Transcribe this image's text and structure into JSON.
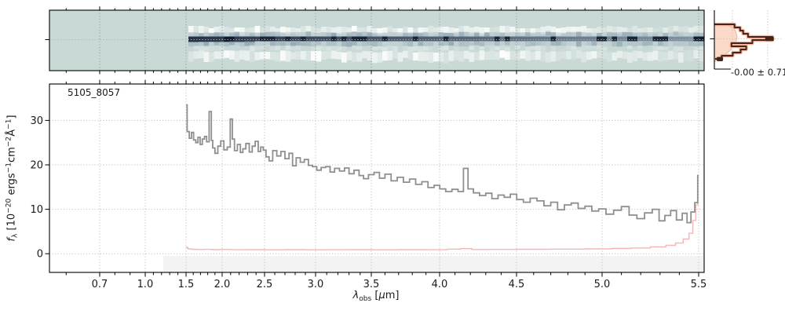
{
  "figure": {
    "id_label": "5105_8057",
    "residual_label": "-0.00 ± 0.71",
    "xlabel_segments": [
      [
        "λ",
        "it"
      ],
      [
        "obs",
        "sub"
      ],
      [
        " [",
        ""
      ],
      [
        "μ",
        "it"
      ],
      [
        "m]",
        ""
      ]
    ],
    "ylabel_segments": [
      [
        "f",
        "it"
      ],
      [
        "λ",
        "sub"
      ],
      [
        " [10",
        ""
      ],
      [
        "−20",
        "sup"
      ],
      [
        " ergs",
        ""
      ],
      [
        "−1",
        "sup"
      ],
      [
        "cm",
        ""
      ],
      [
        "−2",
        "sup"
      ],
      [
        "Å",
        ""
      ],
      [
        "−1",
        "sup"
      ],
      [
        "]",
        ""
      ]
    ]
  },
  "colors": {
    "background": "#ffffff",
    "spine": "#000000",
    "tick": "#000000",
    "text": "#1a1a1a",
    "grid_main": "#c0c0c0",
    "grid_2d": "#8e8f86",
    "grid_2d_h": "#b5b5ad",
    "teal_background": "#c9d9d6",
    "trace_dark": "#273349",
    "trace_light": "#8296a8",
    "trace_blob": "#131d2e",
    "flux_line": "#8f8f8f",
    "err_line": "#f5b6b9",
    "shade": "#f3f3f3",
    "hist_fill": "#f9d2c0",
    "hist_fill_edge": "#f0b196",
    "hist_halo": "#f5b59d",
    "hist_edge": "#46241a"
  },
  "chart_data": {
    "type": "line",
    "title": "",
    "source_id": "5105_8057",
    "grid": "dotted",
    "x_axis": {
      "label": "λ_obs [μm]",
      "scale": "nirspec-prism-pixel (nonlinear)",
      "range_um": [
        0.55,
        5.53
      ],
      "ticks": [
        0.7,
        1.0,
        1.5,
        2.0,
        2.5,
        3.0,
        3.5,
        4.0,
        4.5,
        5.0,
        5.5
      ],
      "minor_tick_step_um": 0.1,
      "anchors": [
        [
          0.55,
          0.0
        ],
        [
          0.7,
          0.0767
        ],
        [
          1.0,
          0.1463
        ],
        [
          1.5,
          0.2086
        ],
        [
          2.0,
          0.2638
        ],
        [
          2.5,
          0.3285
        ],
        [
          3.0,
          0.4065
        ],
        [
          3.5,
          0.4916
        ],
        [
          4.0,
          0.5959
        ],
        [
          4.5,
          0.7134
        ],
        [
          5.0,
          0.8441
        ],
        [
          5.5,
          0.9916
        ],
        [
          5.53,
          1.0
        ]
      ]
    },
    "y_axis": {
      "label": "f_λ [10^−20 ergs^−1 cm^−2 Å^−1]",
      "range": [
        -4.2,
        38.2
      ],
      "ticks": [
        0,
        10,
        20,
        30
      ]
    },
    "series": [
      {
        "name": "flux",
        "style": "step",
        "color_key": "flux_line",
        "width": 1.8,
        "points": [
          [
            1.5,
            33.5
          ],
          [
            1.53,
            27.5
          ],
          [
            1.56,
            26.0
          ],
          [
            1.59,
            27.3
          ],
          [
            1.62,
            25.6
          ],
          [
            1.65,
            25.0
          ],
          [
            1.68,
            26.2
          ],
          [
            1.71,
            24.6
          ],
          [
            1.74,
            25.8
          ],
          [
            1.77,
            26.4
          ],
          [
            1.8,
            25.2
          ],
          [
            1.84,
            32.0
          ],
          [
            1.86,
            25.5
          ],
          [
            1.88,
            23.8
          ],
          [
            1.92,
            22.6
          ],
          [
            1.96,
            24.2
          ],
          [
            2.0,
            25.4
          ],
          [
            2.04,
            23.4
          ],
          [
            2.08,
            24.0
          ],
          [
            2.11,
            30.3
          ],
          [
            2.13,
            25.8
          ],
          [
            2.16,
            23.2
          ],
          [
            2.2,
            24.6
          ],
          [
            2.23,
            22.8
          ],
          [
            2.26,
            23.6
          ],
          [
            2.3,
            24.8
          ],
          [
            2.34,
            22.9
          ],
          [
            2.37,
            24.2
          ],
          [
            2.41,
            25.3
          ],
          [
            2.44,
            23.0
          ],
          [
            2.47,
            24.0
          ],
          [
            2.5,
            23.3
          ],
          [
            2.53,
            21.8
          ],
          [
            2.56,
            20.9
          ],
          [
            2.6,
            23.2
          ],
          [
            2.64,
            22.0
          ],
          [
            2.68,
            23.0
          ],
          [
            2.72,
            21.4
          ],
          [
            2.76,
            22.6
          ],
          [
            2.79,
            19.8
          ],
          [
            2.83,
            21.6
          ],
          [
            2.87,
            20.6
          ],
          [
            2.91,
            21.2
          ],
          [
            2.95,
            19.9
          ],
          [
            2.99,
            19.6
          ],
          [
            3.03,
            18.8
          ],
          [
            3.07,
            19.4
          ],
          [
            3.11,
            19.6
          ],
          [
            3.15,
            18.4
          ],
          [
            3.19,
            19.2
          ],
          [
            3.24,
            18.6
          ],
          [
            3.28,
            19.3
          ],
          [
            3.32,
            18.0
          ],
          [
            3.37,
            18.8
          ],
          [
            3.41,
            17.6
          ],
          [
            3.45,
            16.9
          ],
          [
            3.5,
            17.8
          ],
          [
            3.54,
            18.3
          ],
          [
            3.58,
            17.0
          ],
          [
            3.62,
            17.9
          ],
          [
            3.67,
            16.4
          ],
          [
            3.71,
            17.2
          ],
          [
            3.76,
            16.1
          ],
          [
            3.8,
            16.8
          ],
          [
            3.85,
            15.6
          ],
          [
            3.89,
            16.2
          ],
          [
            3.94,
            14.9
          ],
          [
            3.98,
            15.4
          ],
          [
            4.02,
            14.6
          ],
          [
            4.06,
            14.0
          ],
          [
            4.1,
            14.5
          ],
          [
            4.14,
            14.0
          ],
          [
            4.17,
            19.2
          ],
          [
            4.2,
            14.6
          ],
          [
            4.24,
            13.7
          ],
          [
            4.28,
            13.1
          ],
          [
            4.32,
            13.6
          ],
          [
            4.36,
            12.4
          ],
          [
            4.4,
            13.2
          ],
          [
            4.44,
            12.7
          ],
          [
            4.48,
            13.4
          ],
          [
            4.52,
            12.2
          ],
          [
            4.56,
            11.6
          ],
          [
            4.6,
            12.5
          ],
          [
            4.64,
            11.9
          ],
          [
            4.68,
            10.8
          ],
          [
            4.72,
            11.6
          ],
          [
            4.76,
            9.9
          ],
          [
            4.8,
            11.0
          ],
          [
            4.84,
            11.4
          ],
          [
            4.88,
            10.2
          ],
          [
            4.92,
            10.7
          ],
          [
            4.96,
            9.6
          ],
          [
            5.0,
            10.1
          ],
          [
            5.04,
            8.9
          ],
          [
            5.08,
            9.8
          ],
          [
            5.12,
            10.6
          ],
          [
            5.16,
            8.7
          ],
          [
            5.2,
            7.9
          ],
          [
            5.24,
            9.2
          ],
          [
            5.28,
            10.0
          ],
          [
            5.31,
            7.4
          ],
          [
            5.34,
            8.6
          ],
          [
            5.37,
            9.7
          ],
          [
            5.4,
            7.6
          ],
          [
            5.43,
            9.1
          ],
          [
            5.45,
            7.0
          ],
          [
            5.47,
            9.4
          ],
          [
            5.49,
            11.5
          ],
          [
            5.5,
            17.6
          ]
        ]
      },
      {
        "name": "error",
        "style": "step",
        "color_key": "err_line",
        "width": 1.4,
        "points": [
          [
            1.5,
            1.45
          ],
          [
            1.55,
            1.1
          ],
          [
            1.6,
            1.0
          ],
          [
            1.7,
            0.95
          ],
          [
            1.8,
            1.0
          ],
          [
            1.9,
            0.92
          ],
          [
            2.0,
            0.95
          ],
          [
            2.2,
            0.9
          ],
          [
            2.4,
            0.92
          ],
          [
            2.6,
            0.88
          ],
          [
            2.8,
            0.92
          ],
          [
            3.0,
            0.88
          ],
          [
            3.2,
            0.9
          ],
          [
            3.4,
            0.92
          ],
          [
            3.6,
            0.88
          ],
          [
            3.8,
            0.92
          ],
          [
            4.0,
            0.9
          ],
          [
            4.1,
            1.05
          ],
          [
            4.17,
            1.15
          ],
          [
            4.25,
            0.95
          ],
          [
            4.4,
            0.98
          ],
          [
            4.6,
            1.02
          ],
          [
            4.8,
            1.05
          ],
          [
            5.0,
            1.1
          ],
          [
            5.1,
            1.18
          ],
          [
            5.2,
            1.3
          ],
          [
            5.3,
            1.55
          ],
          [
            5.36,
            1.9
          ],
          [
            5.4,
            2.4
          ],
          [
            5.44,
            3.3
          ],
          [
            5.46,
            4.6
          ],
          [
            5.48,
            7.5
          ],
          [
            5.49,
            11.0
          ],
          [
            5.5,
            17.0
          ]
        ]
      }
    ],
    "shaded_region": {
      "x_range_um": [
        1.22,
        5.53
      ],
      "y_range": [
        -4.2,
        -0.5
      ]
    },
    "spec2d": {
      "wavelength_range_um": [
        0.55,
        5.53
      ],
      "trace_range_um": [
        1.52,
        5.52
      ],
      "y_tick_count": 1,
      "description": "2D spectrum cutout: teal background, dark trace at center fading redward with bright end blob, white noise bands above and below"
    },
    "residual_histogram": {
      "label": "-0.00 ± 0.71",
      "mean": 0.0,
      "sigma": 0.71,
      "bar_fractions": [
        0.33,
        0.42,
        0.47,
        0.55,
        0.95,
        0.62,
        0.28,
        0.52,
        0.43,
        0.3,
        0.12
      ],
      "gauss_fractions": [
        0.18,
        0.3,
        0.34,
        0.36,
        0.37,
        0.36,
        0.34,
        0.31,
        0.27,
        0.22,
        0.14,
        0.05
      ]
    }
  }
}
